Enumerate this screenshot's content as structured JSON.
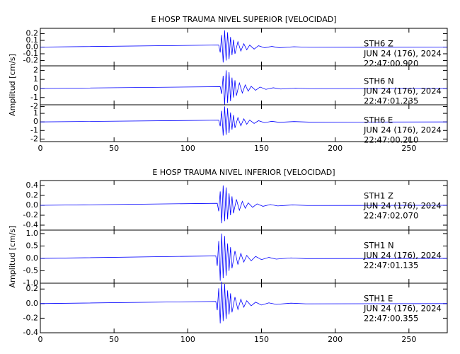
{
  "chart_data": [
    {
      "type": "line",
      "title": "E HOSP TRAUMA NIVEL SUPERIOR [VELOCIDAD]",
      "ylabel": "Amplitud [cm/s]",
      "xlim": [
        0,
        276
      ],
      "xticks": [
        0,
        50,
        100,
        150,
        200,
        250
      ],
      "color": "#0000ff",
      "panels": [
        {
          "ylim": [
            -0.28,
            0.28
          ],
          "yticks": [
            0.2,
            0.1,
            {
              "value": 0,
              "label": "0.0"
            },
            -0.1,
            -0.2
          ],
          "station": "STH6   Z",
          "date": "JUN 24 (176), 2024",
          "time": "22:47:00.920",
          "x": [
            0,
            121,
            122,
            123,
            124,
            125,
            126,
            127,
            128,
            129,
            130,
            131,
            132,
            134,
            136,
            138,
            140,
            142,
            145,
            148,
            152,
            157,
            162,
            172,
            182,
            276
          ],
          "values": [
            0,
            0.03,
            -0.08,
            0.18,
            -0.23,
            0.25,
            -0.2,
            0.22,
            -0.18,
            0.15,
            -0.12,
            0.11,
            -0.1,
            0.08,
            -0.06,
            0.05,
            -0.04,
            0.03,
            -0.03,
            0.02,
            -0.01,
            0.01,
            -0.01,
            0.005,
            -0.003,
            0
          ]
        },
        {
          "ylim": [
            -1.8,
            2.5
          ],
          "yticks": [
            2,
            1,
            0,
            -1,
            -2
          ],
          "station": "STH6   N",
          "date": "JUN 24 (176), 2024",
          "time": "22:47:01.235",
          "x": [
            0,
            122,
            123,
            124,
            125,
            126,
            127,
            128,
            129,
            130,
            131,
            132,
            133,
            135,
            137,
            139,
            141,
            143,
            146,
            149,
            153,
            158,
            163,
            173,
            183,
            276
          ],
          "values": [
            0,
            0.2,
            -0.6,
            1.4,
            -1.8,
            2,
            -1.6,
            1.8,
            -1.4,
            1.2,
            -1,
            0.9,
            -0.8,
            0.6,
            -0.5,
            0.4,
            -0.3,
            0.24,
            -0.2,
            0.16,
            -0.1,
            0.08,
            -0.06,
            0.04,
            -0.02,
            0
          ]
        },
        {
          "ylim": [
            -2.3,
            2
          ],
          "yticks": [
            1,
            0,
            -1,
            -2
          ],
          "station": "STH6   E",
          "date": "JUN 24 (176), 2024",
          "time": "22:47:00.210",
          "x": [
            0,
            121,
            122,
            123,
            124,
            125,
            126,
            127,
            128,
            129,
            130,
            131,
            132,
            134,
            136,
            138,
            140,
            142,
            145,
            148,
            152,
            157,
            162,
            172,
            182,
            276
          ],
          "values": [
            0,
            0.2,
            -0.5,
            1.3,
            -1.6,
            1.8,
            -1.5,
            1.6,
            -1.3,
            1.1,
            -0.9,
            0.8,
            -0.7,
            0.5,
            -0.45,
            0.36,
            -0.27,
            0.22,
            -0.18,
            0.14,
            -0.09,
            0.07,
            -0.05,
            0.04,
            -0.02,
            0
          ]
        }
      ]
    },
    {
      "type": "line",
      "title": "E HOSP TRAUMA NIVEL INFERIOR [VELOCIDAD]",
      "ylabel": "Amplitud [cm/s]",
      "xlim": [
        0,
        276
      ],
      "xticks": [
        0,
        50,
        100,
        150,
        200,
        250
      ],
      "color": "#0000ff",
      "panels": [
        {
          "ylim": [
            -0.5,
            0.5
          ],
          "yticks": [
            0.4,
            0.2,
            {
              "value": 0,
              "label": "0.0"
            },
            -0.2,
            -0.4
          ],
          "station": "STH1   Z",
          "date": "JUN 24 (176), 2024",
          "time": "22:47:02.070",
          "x": [
            0,
            120,
            121,
            122,
            123,
            124,
            125,
            126,
            127,
            128,
            129,
            130,
            131,
            133,
            135,
            137,
            139,
            141,
            144,
            147,
            151,
            156,
            161,
            171,
            181,
            276
          ],
          "values": [
            0,
            0.04,
            -0.12,
            0.28,
            -0.36,
            0.4,
            -0.32,
            0.36,
            -0.28,
            0.24,
            -0.2,
            0.18,
            -0.16,
            0.12,
            -0.1,
            0.08,
            -0.06,
            0.05,
            -0.04,
            0.03,
            -0.02,
            0.016,
            -0.012,
            0.008,
            -0.004,
            0
          ]
        },
        {
          "ylim": [
            -1.0,
            1.14
          ],
          "yticks": [
            {
              "value": 1,
              "label": "1.0"
            },
            0.5,
            {
              "value": 0,
              "label": "0.0"
            },
            -0.5,
            {
              "value": -1,
              "label": "-1.0"
            }
          ],
          "station": "STH1   N",
          "date": "JUN 24 (176), 2024",
          "time": "22:47:01.135",
          "x": [
            0,
            119,
            120,
            121,
            122,
            123,
            124,
            125,
            126,
            127,
            128,
            129,
            130,
            132,
            134,
            136,
            138,
            140,
            143,
            146,
            150,
            155,
            160,
            170,
            180,
            276
          ],
          "values": [
            0,
            0.1,
            -0.3,
            0.7,
            -0.9,
            1,
            -0.8,
            0.9,
            -0.7,
            0.6,
            -0.5,
            0.45,
            -0.4,
            0.3,
            -0.25,
            0.2,
            -0.15,
            0.12,
            -0.1,
            0.08,
            -0.05,
            0.04,
            -0.03,
            0.02,
            -0.01,
            0
          ]
        },
        {
          "ylim": [
            -0.4,
            0.28
          ],
          "yticks": [
            0.2,
            {
              "value": 0,
              "label": "0.0"
            },
            -0.2,
            -0.4
          ],
          "station": "STH1   E",
          "date": "JUN 24 (176), 2024",
          "time": "22:47:00.355",
          "x": [
            0,
            119,
            120,
            121,
            122,
            123,
            124,
            125,
            126,
            127,
            128,
            129,
            130,
            132,
            134,
            136,
            138,
            140,
            143,
            146,
            150,
            155,
            160,
            170,
            180,
            276
          ],
          "values": [
            0,
            0.03,
            -0.09,
            0.21,
            -0.27,
            0.3,
            -0.24,
            0.27,
            -0.21,
            0.18,
            -0.15,
            0.14,
            -0.12,
            0.09,
            -0.08,
            0.06,
            -0.05,
            0.04,
            -0.03,
            0.02,
            -0.02,
            0.01,
            -0.01,
            0.006,
            -0.003,
            0
          ]
        }
      ]
    }
  ]
}
